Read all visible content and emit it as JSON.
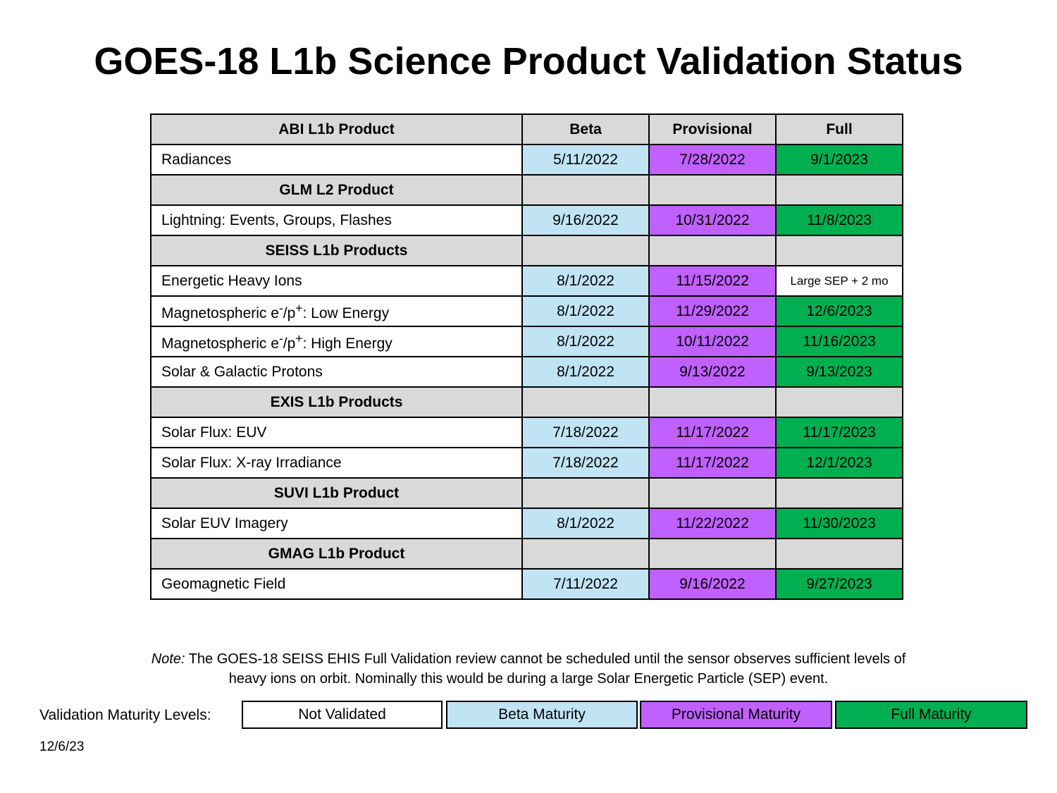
{
  "title": "GOES-18 L1b Science Product Validation Status",
  "columns": {
    "product": "ABI L1b Product",
    "beta": "Beta",
    "provisional": "Provisional",
    "full": "Full"
  },
  "rows": [
    {
      "name": "Radiances",
      "beta": "5/11/2022",
      "provisional": "7/28/2022",
      "full": "9/1/2023"
    },
    {
      "section": "GLM L2 Product"
    },
    {
      "name": "Lightning: Events, Groups, Flashes",
      "beta": "9/16/2022",
      "provisional": "10/31/2022",
      "full": "11/8/2023"
    },
    {
      "section": "SEISS L1b Products"
    },
    {
      "name": "Energetic Heavy Ions",
      "beta": "8/1/2022",
      "provisional": "11/15/2022",
      "full": "Large SEP + 2 mo",
      "full_status": "not-validated"
    },
    {
      "name_html": "Magnetospheric e<sup>-</sup>/p<sup>+</sup>: Low Energy",
      "name": "Magnetospheric e-/p+: Low Energy",
      "beta": "8/1/2022",
      "provisional": "11/29/2022",
      "full": "12/6/2023"
    },
    {
      "name_html": "Magnetospheric e<sup>-</sup>/p<sup>+</sup>: High Energy",
      "name": "Magnetospheric e-/p+: High Energy",
      "beta": "8/1/2022",
      "provisional": "10/11/2022",
      "full": "11/16/2023"
    },
    {
      "name": "Solar & Galactic Protons",
      "beta": "8/1/2022",
      "provisional": "9/13/2022",
      "full": "9/13/2023"
    },
    {
      "section": "EXIS L1b Products"
    },
    {
      "name": "Solar Flux: EUV",
      "beta": "7/18/2022",
      "provisional": "11/17/2022",
      "full": "11/17/2023"
    },
    {
      "name": "Solar Flux: X-ray Irradiance",
      "beta": "7/18/2022",
      "provisional": "11/17/2022",
      "full": "12/1/2023"
    },
    {
      "section": "SUVI L1b Product"
    },
    {
      "name": "Solar EUV Imagery",
      "beta": "8/1/2022",
      "provisional": "11/22/2022",
      "full": "11/30/2023"
    },
    {
      "section": "GMAG L1b Product"
    },
    {
      "name": "Geomagnetic Field",
      "beta": "7/11/2022",
      "provisional": "9/16/2022",
      "full": "9/27/2023"
    }
  ],
  "note": {
    "lead": "Note:",
    "line1": " The GOES-18 SEISS EHIS Full Validation review cannot be scheduled until the sensor observes sufficient levels of",
    "line2": "heavy ions on orbit. Nominally this would be during a large Solar Energetic Particle (SEP) event."
  },
  "legend": {
    "label": "Validation Maturity Levels:",
    "items": [
      {
        "label": "Not Validated",
        "color": "#ffffff"
      },
      {
        "label": "Beta Maturity",
        "color": "#c1e4f5"
      },
      {
        "label": "Provisional Maturity",
        "color": "#c060ff"
      },
      {
        "label": "Full Maturity",
        "color": "#00b050"
      }
    ]
  },
  "footer_date": "12/6/23",
  "colors": {
    "header_gray": "#d9d9d9",
    "beta": "#c1e4f5",
    "provisional": "#c060ff",
    "full": "#00b050",
    "not_validated": "#ffffff"
  }
}
